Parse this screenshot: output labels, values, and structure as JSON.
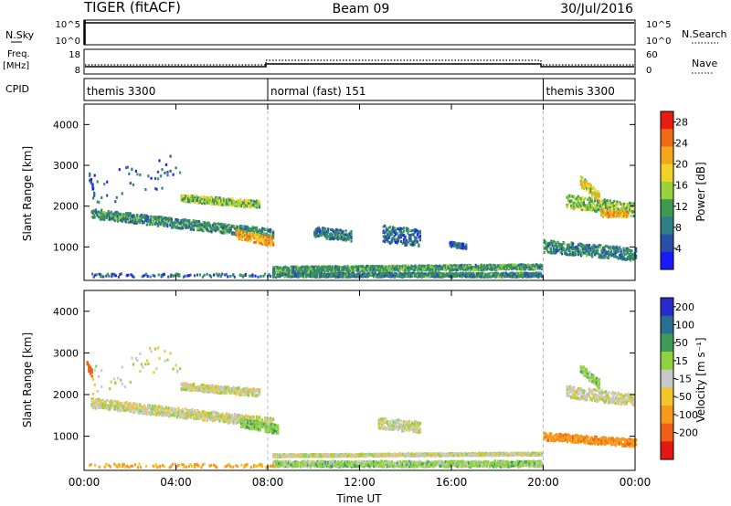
{
  "header": {
    "left": "TIGER (fitACF)",
    "center": "Beam 09",
    "right": "30/Jul/2016"
  },
  "nsky_panel": {
    "left_label": "N.Sky",
    "right_label": "N.Search",
    "y_ticks": [
      "10^5",
      "10^0"
    ],
    "y_ticks_right": [
      "10^5",
      "10^0"
    ]
  },
  "freq_panel": {
    "left_label_line1": "Freq.",
    "left_label_line2": "[MHz]",
    "right_label": "Nave",
    "y_ticks": [
      "18",
      "8"
    ],
    "y_ticks_right": [
      "60",
      "0"
    ]
  },
  "cpid_panel": {
    "label": "CPID",
    "segments": [
      {
        "text": "themis 3300",
        "start_h": 0,
        "end_h": 8
      },
      {
        "text": "normal (fast) 151",
        "start_h": 8,
        "end_h": 20
      },
      {
        "text": "themis 3300",
        "start_h": 20,
        "end_h": 24
      }
    ]
  },
  "colors": {
    "power": [
      "#1a1aff",
      "#2a4fa8",
      "#2e7f86",
      "#3d9a50",
      "#9ad23c",
      "#f2d22a",
      "#f5a51c",
      "#ef6a16",
      "#e81d10"
    ],
    "velocity": [
      "#2a2acc",
      "#2c6e92",
      "#3d9c57",
      "#8fd23e",
      "#c8c8c8",
      "#f2c62a",
      "#f59a1c",
      "#ef5f16",
      "#e41a12"
    ],
    "separator": "#bbbbbb"
  },
  "chart_data": [
    {
      "type": "heatmap",
      "title": "",
      "xlabel": "",
      "ylabel": "Slant Range [km]",
      "xlim": [
        0,
        24
      ],
      "ylim": [
        180,
        4500
      ],
      "y_ticks": [
        "1000",
        "2000",
        "3000",
        "4000"
      ],
      "x_ticks": [
        "00:00",
        "04:00",
        "08:00",
        "12:00",
        "16:00",
        "20:00",
        "00:00"
      ],
      "colorbar": {
        "label": "Power [dB]",
        "ticks": [
          "4",
          "8",
          "12",
          "16",
          "20",
          "24",
          "28"
        ],
        "range": [
          0,
          30
        ]
      },
      "regions": [
        {
          "t": [
            0.3,
            8.2
          ],
          "r0": [
            1800,
            1300
          ],
          "w": 230,
          "level": 10
        },
        {
          "t": [
            4.2,
            7.6
          ],
          "r0": [
            2180,
            2030
          ],
          "w": 170,
          "level": 14
        },
        {
          "t": [
            6.6,
            8.2
          ],
          "r0": [
            1300,
            1100
          ],
          "w": 220,
          "level": 21
        },
        {
          "t": [
            0.2,
            0.4
          ],
          "r0": [
            2700,
            2300
          ],
          "w": 180,
          "level": 7
        },
        {
          "t": [
            0.3,
            4.2
          ],
          "r0": [
            2350,
            2900
          ],
          "w": 800,
          "level": 6,
          "sparse": true
        },
        {
          "t": [
            10.0,
            11.6
          ],
          "r0": [
            1350,
            1250
          ],
          "w": 260,
          "level": 8
        },
        {
          "t": [
            13.0,
            14.6
          ],
          "r0": [
            1300,
            1200
          ],
          "w": 420,
          "level": 7
        },
        {
          "t": [
            15.9,
            16.6
          ],
          "r0": [
            1050,
            1000
          ],
          "w": 120,
          "level": 6
        },
        {
          "t": [
            8.2,
            19.9
          ],
          "r0": [
            440,
            500
          ],
          "w": 120,
          "level": 11
        },
        {
          "t": [
            8.2,
            19.9
          ],
          "r0": [
            300,
            300
          ],
          "w": 100,
          "level": 9
        },
        {
          "t": [
            0.2,
            8.2
          ],
          "r0": [
            290,
            290
          ],
          "w": 80,
          "level": 7,
          "sparse": true
        },
        {
          "t": [
            20.0,
            24.0
          ],
          "r0": [
            1000,
            800
          ],
          "w": 300,
          "level": 9
        },
        {
          "t": [
            21.0,
            23.9
          ],
          "r0": [
            2100,
            1900
          ],
          "w": 320,
          "level": 14
        },
        {
          "t": [
            21.6,
            22.4
          ],
          "r0": [
            2600,
            2200
          ],
          "w": 250,
          "level": 18
        },
        {
          "t": [
            22.5,
            23.6
          ],
          "r0": [
            1800,
            1800
          ],
          "w": 160,
          "level": 21
        }
      ]
    },
    {
      "type": "heatmap",
      "title": "",
      "xlabel": "Time UT",
      "ylabel": "Slant Range [km]",
      "xlim": [
        0,
        24
      ],
      "ylim": [
        180,
        4500
      ],
      "y_ticks": [
        "1000",
        "2000",
        "3000",
        "4000"
      ],
      "x_ticks": [
        "00:00",
        "04:00",
        "08:00",
        "12:00",
        "16:00",
        "20:00",
        "00:00"
      ],
      "colorbar": {
        "label": "Velocity [m s⁻¹]",
        "ticks": [
          "200",
          "100",
          "50",
          "15",
          "-15",
          "-50",
          "-100",
          "-200"
        ],
        "range": [
          -250,
          250
        ]
      },
      "regions": [
        {
          "t": [
            0.3,
            8.2
          ],
          "r0": [
            1780,
            1300
          ],
          "w": 230,
          "level": 0
        },
        {
          "t": [
            4.2,
            7.6
          ],
          "r0": [
            2180,
            2030
          ],
          "w": 170,
          "level": 0
        },
        {
          "t": [
            6.8,
            8.4
          ],
          "r0": [
            1300,
            1150
          ],
          "w": 220,
          "level": 40
        },
        {
          "t": [
            0.1,
            0.3
          ],
          "r0": [
            2700,
            2500
          ],
          "w": 180,
          "level": -150
        },
        {
          "t": [
            0.3,
            4.2
          ],
          "r0": [
            2350,
            2900
          ],
          "w": 800,
          "level": 0,
          "sparse": true
        },
        {
          "t": [
            8.2,
            19.9
          ],
          "r0": [
            520,
            560
          ],
          "w": 60,
          "level": 0
        },
        {
          "t": [
            8.2,
            19.9
          ],
          "r0": [
            320,
            320
          ],
          "w": 140,
          "level": 30
        },
        {
          "t": [
            12.8,
            14.6
          ],
          "r0": [
            1300,
            1200
          ],
          "w": 260,
          "level": 0
        },
        {
          "t": [
            0.2,
            8.2
          ],
          "r0": [
            280,
            280
          ],
          "w": 80,
          "level": -60,
          "sparse": true
        },
        {
          "t": [
            20.0,
            24.0
          ],
          "r0": [
            980,
            820
          ],
          "w": 180,
          "level": -80
        },
        {
          "t": [
            21.0,
            23.9
          ],
          "r0": [
            2050,
            1850
          ],
          "w": 280,
          "level": 0
        },
        {
          "t": [
            21.6,
            22.4
          ],
          "r0": [
            2600,
            2250
          ],
          "w": 220,
          "level": 30
        }
      ]
    }
  ]
}
